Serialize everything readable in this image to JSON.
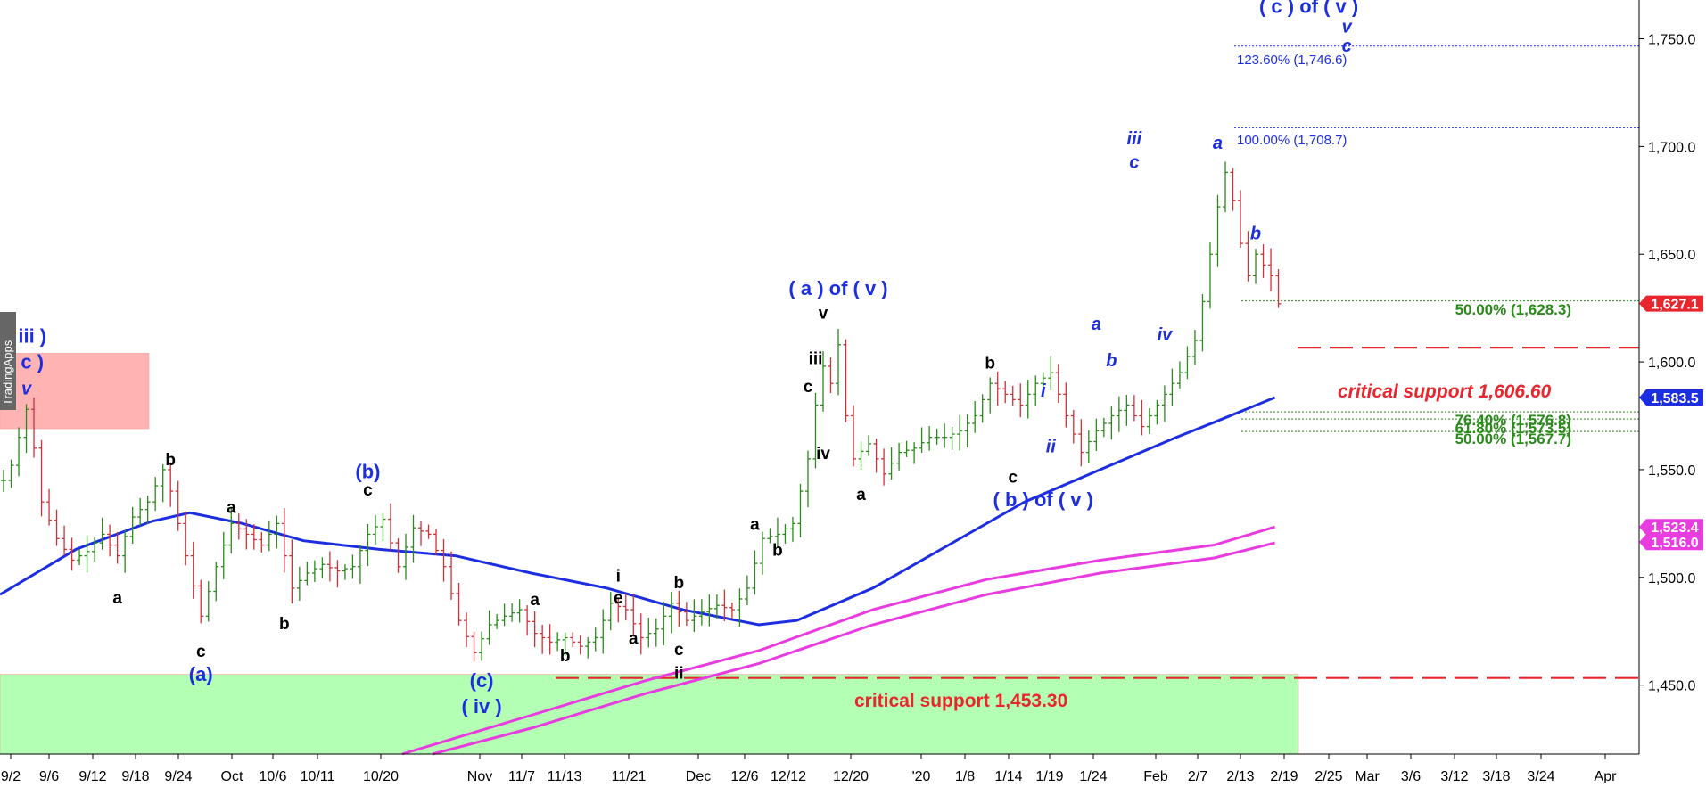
{
  "chart_data": {
    "type": "candlestick",
    "watermark": "TradingApps",
    "ylim": [
      1418,
      1768
    ],
    "y_ticks": [
      {
        "value": 1750,
        "label": "1,750.0"
      },
      {
        "value": 1700,
        "label": "1,700.0"
      },
      {
        "value": 1650,
        "label": "1,650.0"
      },
      {
        "value": 1600,
        "label": "1,600.0"
      },
      {
        "value": 1550,
        "label": "1,550.0"
      },
      {
        "value": 1500,
        "label": "1,500.0"
      },
      {
        "value": 1450,
        "label": "1,450.0"
      }
    ],
    "x_ticks": [
      "9/2",
      "9/6",
      "9/12",
      "9/18",
      "9/24",
      "Oct",
      "10/6",
      "10/11",
      "10/20",
      "Nov",
      "11/7",
      "11/13",
      "11/21",
      "Dec",
      "12/6",
      "12/12",
      "12/20",
      "'20",
      "1/8",
      "1/14",
      "1/19",
      "1/24",
      "Feb",
      "2/7",
      "2/13",
      "2/19",
      "2/25",
      "Mar",
      "3/6",
      "3/12",
      "3/18",
      "3/24",
      "Apr"
    ],
    "price_badges": [
      {
        "label": "1,627.1",
        "value": 1627.1,
        "color": "#e8262e"
      },
      {
        "label": "1,583.5",
        "value": 1583.5,
        "color": "#1c2ee0"
      },
      {
        "label": "1,523.4",
        "value": 1523.4,
        "color": "#e83ce0"
      },
      {
        "label": "1,516.0",
        "value": 1516.0,
        "color": "#e83ce0"
      }
    ],
    "price_path": [
      {
        "x": 0,
        "y": 1545
      },
      {
        "x": 1,
        "y": 1552
      },
      {
        "x": 2,
        "y": 1565
      },
      {
        "x": 3,
        "y": 1578
      },
      {
        "x": 4,
        "y": 1560
      },
      {
        "x": 5,
        "y": 1535
      },
      {
        "x": 7,
        "y": 1518
      },
      {
        "x": 9,
        "y": 1508
      },
      {
        "x": 11,
        "y": 1512
      },
      {
        "x": 13,
        "y": 1520
      },
      {
        "x": 15,
        "y": 1510
      },
      {
        "x": 17,
        "y": 1528
      },
      {
        "x": 19,
        "y": 1535
      },
      {
        "x": 21,
        "y": 1550
      },
      {
        "x": 22,
        "y": 1540
      },
      {
        "x": 24,
        "y": 1510
      },
      {
        "x": 26,
        "y": 1482
      },
      {
        "x": 28,
        "y": 1505
      },
      {
        "x": 30,
        "y": 1525
      },
      {
        "x": 32,
        "y": 1520
      },
      {
        "x": 34,
        "y": 1515
      },
      {
        "x": 36,
        "y": 1525
      },
      {
        "x": 38,
        "y": 1495
      },
      {
        "x": 40,
        "y": 1502
      },
      {
        "x": 42,
        "y": 1506
      },
      {
        "x": 44,
        "y": 1503
      },
      {
        "x": 46,
        "y": 1505
      },
      {
        "x": 48,
        "y": 1520
      },
      {
        "x": 50,
        "y": 1527
      },
      {
        "x": 52,
        "y": 1505
      },
      {
        "x": 54,
        "y": 1523
      },
      {
        "x": 56,
        "y": 1520
      },
      {
        "x": 58,
        "y": 1505
      },
      {
        "x": 60,
        "y": 1480
      },
      {
        "x": 62,
        "y": 1465
      },
      {
        "x": 64,
        "y": 1478
      },
      {
        "x": 66,
        "y": 1482
      },
      {
        "x": 68,
        "y": 1485
      },
      {
        "x": 70,
        "y": 1474
      },
      {
        "x": 72,
        "y": 1470
      },
      {
        "x": 74,
        "y": 1472
      },
      {
        "x": 76,
        "y": 1468
      },
      {
        "x": 78,
        "y": 1472
      },
      {
        "x": 80,
        "y": 1488
      },
      {
        "x": 82,
        "y": 1485
      },
      {
        "x": 84,
        "y": 1472
      },
      {
        "x": 86,
        "y": 1476
      },
      {
        "x": 88,
        "y": 1488
      },
      {
        "x": 90,
        "y": 1480
      },
      {
        "x": 92,
        "y": 1484
      },
      {
        "x": 94,
        "y": 1487
      },
      {
        "x": 96,
        "y": 1485
      },
      {
        "x": 98,
        "y": 1495
      },
      {
        "x": 100,
        "y": 1518
      },
      {
        "x": 102,
        "y": 1520
      },
      {
        "x": 104,
        "y": 1525
      },
      {
        "x": 106,
        "y": 1555
      },
      {
        "x": 107,
        "y": 1580
      },
      {
        "x": 108,
        "y": 1598
      },
      {
        "x": 109,
        "y": 1590
      },
      {
        "x": 110,
        "y": 1608
      },
      {
        "x": 111,
        "y": 1575
      },
      {
        "x": 112,
        "y": 1555
      },
      {
        "x": 114,
        "y": 1562
      },
      {
        "x": 116,
        "y": 1548
      },
      {
        "x": 118,
        "y": 1558
      },
      {
        "x": 120,
        "y": 1560
      },
      {
        "x": 122,
        "y": 1565
      },
      {
        "x": 124,
        "y": 1565
      },
      {
        "x": 126,
        "y": 1568
      },
      {
        "x": 128,
        "y": 1575
      },
      {
        "x": 130,
        "y": 1590
      },
      {
        "x": 132,
        "y": 1585
      },
      {
        "x": 134,
        "y": 1580
      },
      {
        "x": 136,
        "y": 1590
      },
      {
        "x": 138,
        "y": 1595
      },
      {
        "x": 140,
        "y": 1575
      },
      {
        "x": 142,
        "y": 1558
      },
      {
        "x": 144,
        "y": 1568
      },
      {
        "x": 146,
        "y": 1575
      },
      {
        "x": 148,
        "y": 1580
      },
      {
        "x": 150,
        "y": 1570
      },
      {
        "x": 151,
        "y": 1575
      },
      {
        "x": 153,
        "y": 1585
      },
      {
        "x": 155,
        "y": 1595
      },
      {
        "x": 157,
        "y": 1610
      },
      {
        "x": 158,
        "y": 1628
      },
      {
        "x": 159,
        "y": 1650
      },
      {
        "x": 160,
        "y": 1672
      },
      {
        "x": 161,
        "y": 1688
      },
      {
        "x": 162,
        "y": 1675
      },
      {
        "x": 163,
        "y": 1655
      },
      {
        "x": 164,
        "y": 1640
      },
      {
        "x": 165,
        "y": 1650
      },
      {
        "x": 166,
        "y": 1645
      },
      {
        "x": 167,
        "y": 1640
      },
      {
        "x": 168,
        "y": 1627
      }
    ],
    "ma_blue": [
      {
        "x": 0,
        "y": 1492
      },
      {
        "x": 10,
        "y": 1513
      },
      {
        "x": 20,
        "y": 1526
      },
      {
        "x": 25,
        "y": 1530
      },
      {
        "x": 32,
        "y": 1525
      },
      {
        "x": 40,
        "y": 1517
      },
      {
        "x": 50,
        "y": 1513
      },
      {
        "x": 60,
        "y": 1510
      },
      {
        "x": 70,
        "y": 1502
      },
      {
        "x": 80,
        "y": 1495
      },
      {
        "x": 90,
        "y": 1485
      },
      {
        "x": 100,
        "y": 1478
      },
      {
        "x": 105,
        "y": 1480
      },
      {
        "x": 115,
        "y": 1495
      },
      {
        "x": 125,
        "y": 1515
      },
      {
        "x": 135,
        "y": 1535
      },
      {
        "x": 145,
        "y": 1550
      },
      {
        "x": 155,
        "y": 1565
      },
      {
        "x": 160,
        "y": 1572
      },
      {
        "x": 168,
        "y": 1583.5
      }
    ],
    "ma_magenta_1": [
      {
        "x": 53,
        "y": 1418
      },
      {
        "x": 70,
        "y": 1436
      },
      {
        "x": 85,
        "y": 1452
      },
      {
        "x": 100,
        "y": 1466
      },
      {
        "x": 115,
        "y": 1485
      },
      {
        "x": 130,
        "y": 1499
      },
      {
        "x": 145,
        "y": 1508
      },
      {
        "x": 160,
        "y": 1515
      },
      {
        "x": 168,
        "y": 1523.4
      }
    ],
    "ma_magenta_2": [
      {
        "x": 57,
        "y": 1418
      },
      {
        "x": 70,
        "y": 1430
      },
      {
        "x": 85,
        "y": 1446
      },
      {
        "x": 100,
        "y": 1460
      },
      {
        "x": 115,
        "y": 1478
      },
      {
        "x": 130,
        "y": 1492
      },
      {
        "x": 145,
        "y": 1502
      },
      {
        "x": 160,
        "y": 1509
      },
      {
        "x": 168,
        "y": 1516.0
      }
    ],
    "fib_levels": [
      {
        "label": "123.60% (1,746.6)",
        "value": 1746.6,
        "color": "#1c2ee0"
      },
      {
        "label": "100.00% (1,708.7)",
        "value": 1708.7,
        "color": "#1c2ee0"
      },
      {
        "label": "50.00% (1,628.3)",
        "value": 1628.3,
        "color": "#2a8a1a"
      },
      {
        "label": "76.40% (1,576.8)",
        "value": 1576.8,
        "color": "#2a8a1a"
      },
      {
        "label": "61.80% (1,573.5)",
        "value": 1573.5,
        "color": "#2a8a1a"
      },
      {
        "label": "50.00% (1,567.7)",
        "value": 1567.7,
        "color": "#2a8a1a"
      }
    ],
    "support_lines": [
      {
        "label": "critical support 1,606.60",
        "value": 1606.6
      },
      {
        "label": "critical support 1,453.30",
        "value": 1453.3
      }
    ],
    "zones": [
      {
        "name": "red-resistance-zone",
        "y_top": 1604,
        "y_bottom": 1569,
        "color": "#ffb3b3"
      },
      {
        "name": "green-support-zone",
        "y_top": 1455,
        "y_bottom": 1418,
        "color": "#b3ffb3"
      }
    ],
    "wave_labels": [
      {
        "text": "( iii )",
        "color": "#1c2ee0",
        "x": 3,
        "y": 1609
      },
      {
        "text": "( c )",
        "color": "#1c2ee0",
        "x": 3,
        "y": 1597
      },
      {
        "text": "v",
        "color": "#1c2ee0",
        "x": 3,
        "y": 1585
      },
      {
        "text": "b",
        "color": "#000",
        "x": 22,
        "y": 1552
      },
      {
        "text": "a",
        "color": "#000",
        "x": 30,
        "y": 1530
      },
      {
        "text": "a",
        "color": "#000",
        "x": 15,
        "y": 1488
      },
      {
        "text": "c",
        "color": "#000",
        "x": 26,
        "y": 1463
      },
      {
        "text": "(a)",
        "color": "#1c2ee0",
        "x": 26,
        "y": 1452
      },
      {
        "text": "b",
        "color": "#000",
        "x": 37,
        "y": 1476
      },
      {
        "text": "(b)",
        "color": "#1c2ee0",
        "x": 48,
        "y": 1546
      },
      {
        "text": "c",
        "color": "#000",
        "x": 48,
        "y": 1538
      },
      {
        "text": "(c)",
        "color": "#1c2ee0",
        "x": 63,
        "y": 1449
      },
      {
        "text": "( iv )",
        "color": "#1c2ee0",
        "x": 63,
        "y": 1437
      },
      {
        "text": "a",
        "color": "#000",
        "x": 70,
        "y": 1487
      },
      {
        "text": "b",
        "color": "#000",
        "x": 74,
        "y": 1461
      },
      {
        "text": "a",
        "color": "#000",
        "x": 83,
        "y": 1469
      },
      {
        "text": "i",
        "color": "#000",
        "x": 81,
        "y": 1498
      },
      {
        "text": "e",
        "color": "#000",
        "x": 81,
        "y": 1488
      },
      {
        "text": "b",
        "color": "#000",
        "x": 89,
        "y": 1495
      },
      {
        "text": "c",
        "color": "#000",
        "x": 89,
        "y": 1464
      },
      {
        "text": "ii",
        "color": "#000",
        "x": 89,
        "y": 1453
      },
      {
        "text": "a",
        "color": "#000",
        "x": 99,
        "y": 1522
      },
      {
        "text": "b",
        "color": "#000",
        "x": 102,
        "y": 1510
      },
      {
        "text": "( a )  of ( v )",
        "color": "#1c2ee0",
        "x": 110,
        "y": 1631
      },
      {
        "text": "v",
        "color": "#000",
        "x": 108,
        "y": 1620
      },
      {
        "text": "iii",
        "color": "#000",
        "x": 107,
        "y": 1599
      },
      {
        "text": "c",
        "color": "#000",
        "x": 106,
        "y": 1586
      },
      {
        "text": "iv",
        "color": "#000",
        "x": 108,
        "y": 1555
      },
      {
        "text": "a",
        "color": "#000",
        "x": 113,
        "y": 1536
      },
      {
        "text": "b",
        "color": "#000",
        "x": 130,
        "y": 1597
      },
      {
        "text": "c",
        "color": "#000",
        "x": 133,
        "y": 1544
      },
      {
        "text": "( b )  of ( v )",
        "color": "#1c2ee0",
        "x": 137,
        "y": 1533
      },
      {
        "text": "i",
        "color": "#1c2ee0",
        "x": 137,
        "y": 1584
      },
      {
        "text": "ii",
        "color": "#1c2ee0",
        "x": 138,
        "y": 1558
      },
      {
        "text": "a",
        "color": "#1c2ee0",
        "x": 144,
        "y": 1615
      },
      {
        "text": "b",
        "color": "#1c2ee0",
        "x": 146,
        "y": 1598
      },
      {
        "text": "iii",
        "color": "#1c2ee0",
        "x": 149,
        "y": 1701
      },
      {
        "text": "c",
        "color": "#1c2ee0",
        "x": 149,
        "y": 1690
      },
      {
        "text": "iv",
        "color": "#1c2ee0",
        "x": 153,
        "y": 1610
      },
      {
        "text": "a",
        "color": "#1c2ee0",
        "x": 160,
        "y": 1699
      },
      {
        "text": "b",
        "color": "#1c2ee0",
        "x": 165,
        "y": 1657
      },
      {
        "text": "( c )  of ( v )",
        "color": "#1c2ee0",
        "x": 172,
        "y": 1762
      },
      {
        "text": "v",
        "color": "#1c2ee0",
        "x": 177,
        "y": 1753
      },
      {
        "text": "c",
        "color": "#1c2ee0",
        "x": 177,
        "y": 1744
      }
    ]
  }
}
